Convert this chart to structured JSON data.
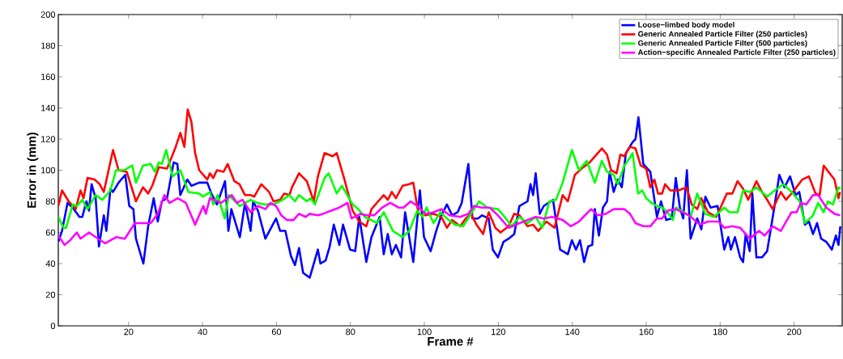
{
  "chart_data": {
    "type": "line",
    "xlabel": "Frame #",
    "ylabel": "Error in (mm)",
    "xlim": [
      1,
      213
    ],
    "ylim": [
      0,
      200
    ],
    "xticks": [
      20,
      40,
      60,
      80,
      100,
      120,
      140,
      160,
      180,
      200
    ],
    "yticks": [
      0,
      20,
      40,
      60,
      80,
      100,
      120,
      140,
      160,
      180,
      200
    ],
    "legend": "top right",
    "marker": "none",
    "line_style": "solid",
    "series": [
      {
        "name": "Loose−limbed body model",
        "color": "#0000ff",
        "x": [
          1,
          2,
          3.5,
          4.9,
          6.7,
          7.5,
          8.6,
          9.3,
          10,
          11.1,
          12,
          13.3,
          14,
          15.1,
          15.8,
          17.3,
          19.1,
          20.2,
          21.3,
          22,
          24,
          25.3,
          26.8,
          27.9,
          29,
          30.4,
          32.2,
          33.2,
          34,
          35.9,
          37,
          39.1,
          41.3,
          42.4,
          43.9,
          46.1,
          47,
          47.8,
          50.1,
          51.5,
          53,
          53.7,
          55,
          57,
          58.1,
          59.9,
          61,
          62.4,
          63.9,
          65,
          66.1,
          67.2,
          69,
          71.2,
          71.9,
          73.3,
          74.4,
          75.5,
          77,
          78,
          79.9,
          81.3,
          82.4,
          84.3,
          85.7,
          87.9,
          89,
          90.1,
          91.2,
          92.3,
          93.7,
          94.8,
          97,
          98.8,
          99.9,
          101.7,
          103.2,
          104.6,
          106.1,
          107.5,
          109,
          110.1,
          111.9,
          113,
          114.5,
          115.6,
          117.4,
          118.5,
          119.9,
          121.4,
          122.8,
          124.3,
          125.7,
          127.9,
          128.7,
          129.4,
          130.1,
          131.2,
          132.3,
          134.8,
          136.7,
          138.8,
          139.9,
          141,
          142.1,
          143.2,
          144.3,
          145.4,
          146.1,
          147.2,
          148.3,
          149.4,
          150.1,
          151.2,
          152.3,
          153.4,
          154.5,
          156.3,
          157.1,
          157.9,
          159.2,
          161.1,
          162.9,
          164,
          165.4,
          166.9,
          168,
          169.1,
          170,
          171,
          172,
          173.8,
          174.9,
          176,
          177.4,
          179.3,
          181.1,
          182.2,
          182.9,
          184,
          185.4,
          186.2,
          186.9,
          188,
          188.7,
          189.8,
          191.3,
          192.7,
          194.5,
          196,
          197.4,
          198.9,
          200.4,
          201.4,
          202.9,
          204,
          205.1,
          206.2,
          207.3,
          208.7,
          210.2,
          211.3,
          212,
          212.5
        ],
        "values": [
          54,
          61,
          79,
          76,
          70,
          70,
          80,
          74,
          91,
          82,
          51,
          71,
          61,
          88,
          86,
          92,
          97,
          77,
          75,
          56,
          40,
          64,
          82,
          67,
          80,
          82,
          105,
          104,
          84,
          94,
          90,
          92,
          92,
          85,
          78,
          93,
          61,
          75,
          57,
          79,
          61,
          80,
          74,
          56,
          61,
          69,
          61,
          61,
          45,
          39,
          50,
          34,
          31,
          49,
          40,
          42,
          51,
          65,
          52,
          65,
          49,
          48,
          70,
          41,
          57,
          70,
          46,
          59,
          46,
          52,
          44,
          73,
          41,
          87,
          57,
          48,
          61,
          71,
          78,
          71,
          73,
          79,
          104,
          69,
          69,
          71,
          69,
          49,
          44,
          54,
          56,
          59,
          77,
          80,
          91,
          84,
          98,
          72,
          77,
          81,
          49,
          46,
          55,
          49,
          55,
          41,
          51,
          52,
          75,
          58,
          76,
          80,
          99,
          86,
          94,
          89,
          111,
          118,
          120,
          134,
          104,
          99,
          70,
          80,
          68,
          69,
          95,
          76,
          69,
          100,
          56,
          69,
          62,
          83,
          76,
          77,
          49,
          57,
          49,
          57,
          44,
          41,
          59,
          48,
          85,
          44,
          44,
          48,
          74,
          97,
          89,
          96,
          84,
          86,
          65,
          67,
          59,
          66,
          56,
          54,
          49,
          58,
          52,
          64
        ]
      },
      {
        "name": "Generic Annealed Particle Filter (250 particles)",
        "color": "#ff0000",
        "x": [
          1,
          2,
          3.8,
          5.7,
          7,
          7.8,
          8.9,
          10.8,
          12.2,
          13.3,
          15.8,
          17.3,
          19.5,
          22,
          23.9,
          25.3,
          26.4,
          28.2,
          30.4,
          32.6,
          34,
          35.1,
          36,
          37,
          38,
          39.1,
          41.3,
          42,
          42.9,
          43.9,
          45.7,
          46.8,
          48.6,
          50,
          51.5,
          53,
          54,
          55.9,
          58,
          59.2,
          61,
          62.1,
          63.5,
          64.2,
          66.1,
          68.2,
          70.1,
          71.2,
          73,
          75.2,
          76.3,
          78.4,
          80.6,
          82.4,
          84.3,
          85.7,
          87.5,
          89,
          90.1,
          91.2,
          92.3,
          94.1,
          95.9,
          97,
          98.4,
          100.3,
          102.5,
          104.6,
          106.1,
          107.5,
          109.7,
          111.2,
          112.6,
          114.1,
          115.9,
          117.4,
          119.2,
          120.6,
          122.8,
          124.3,
          125.7,
          127.9,
          129.4,
          130.8,
          133,
          135.2,
          137.4,
          138.8,
          140.7,
          142.5,
          144.7,
          148,
          149.4,
          150.5,
          152,
          153,
          154.1,
          155.6,
          157.1,
          158.5,
          160,
          161.1,
          162.2,
          163.2,
          164.3,
          165.1,
          166.5,
          168.7,
          170.9,
          172.3,
          173.8,
          174.9,
          176.7,
          178.9,
          180.3,
          181.8,
          183.3,
          184.7,
          186.2,
          187.6,
          189.8,
          191.3,
          192.7,
          194.2,
          196.4,
          197.8,
          200,
          202.2,
          204,
          205.8,
          206.9,
          208,
          210.9,
          212,
          212.4
        ],
        "values": [
          77,
          87,
          80,
          75,
          87,
          82,
          95,
          94,
          91,
          86,
          113,
          100,
          99,
          80,
          89,
          85,
          90,
          102,
          101,
          114,
          124,
          115,
          139,
          131,
          111,
          100,
          94,
          98,
          95,
          100,
          99,
          104,
          93,
          91,
          84,
          84,
          83,
          91,
          86,
          80,
          81,
          85,
          84,
          89,
          98,
          93,
          80,
          96,
          111,
          109,
          111,
          94,
          74,
          67,
          64,
          75,
          80,
          84,
          81,
          86,
          82,
          90,
          91,
          92,
          72,
          71,
          72,
          70,
          63,
          68,
          64,
          69,
          72,
          65,
          59,
          73,
          63,
          60,
          64,
          72,
          71,
          64,
          65,
          61,
          67,
          63,
          84,
          80,
          97,
          101,
          105,
          114,
          110,
          100,
          98,
          110,
          109,
          115,
          114,
          103,
          101,
          89,
          94,
          85,
          85,
          91,
          87,
          87,
          89,
          78,
          75,
          82,
          73,
          70,
          77,
          85,
          85,
          93,
          88,
          81,
          93,
          86,
          81,
          75,
          86,
          81,
          87,
          94,
          96,
          85,
          84,
          103,
          94,
          82,
          86
        ]
      },
      {
        "name": "Generic Annealed Particle Filter (500 particles)",
        "color": "#00ff00",
        "x": [
          1,
          2.4,
          3.1,
          4.9,
          6,
          7.5,
          8.9,
          11.1,
          12.9,
          15.1,
          16.6,
          18.8,
          21,
          22,
          23.9,
          26,
          27.1,
          28.2,
          29,
          30.2,
          31.9,
          34,
          36.2,
          39.1,
          40.2,
          42,
          42.9,
          44.1,
          46,
          47.1,
          50.1,
          53,
          54.8,
          56.6,
          59.2,
          61.7,
          63.5,
          65,
          66.1,
          68.2,
          69.3,
          70.4,
          73,
          74.1,
          76.3,
          77.7,
          80.6,
          82.1,
          83.9,
          87.2,
          89,
          91.5,
          94.1,
          95.9,
          98.1,
          99.5,
          100.6,
          102.5,
          104.3,
          106.1,
          108.3,
          110.5,
          112.6,
          114.8,
          117,
          119.9,
          121.7,
          123.6,
          125.7,
          127.9,
          130.1,
          131.9,
          133.8,
          135.6,
          137.4,
          139.9,
          141.8,
          143.9,
          146.1,
          148,
          149.4,
          151.2,
          152.3,
          154.1,
          155.6,
          156.3,
          157.8,
          158.9,
          160,
          161.4,
          162.9,
          164.3,
          165.8,
          167.2,
          168,
          170.2,
          172,
          173.8,
          176,
          178.2,
          179.3,
          181.1,
          182.5,
          184.7,
          186.2,
          188,
          189.8,
          192.7,
          194.2,
          197.1,
          199.3,
          201.5,
          202.9,
          205.1,
          206.5,
          208,
          209.1,
          210.5,
          212,
          212.5
        ],
        "values": [
          70,
          63,
          63,
          78,
          77,
          81,
          75,
          84,
          81,
          87,
          100,
          100,
          103,
          92,
          103,
          104,
          99,
          105,
          104,
          113,
          96,
          100,
          86,
          85,
          83,
          86,
          78,
          84,
          69,
          84,
          77,
          81,
          79,
          78,
          78,
          81,
          84,
          80,
          84,
          80,
          82,
          78,
          95,
          98,
          85,
          90,
          78,
          75,
          70,
          66,
          73,
          61,
          57,
          61,
          74,
          70,
          76,
          66,
          73,
          69,
          65,
          64,
          72,
          80,
          76,
          75,
          70,
          64,
          70,
          66,
          70,
          63,
          80,
          81,
          92,
          113,
          100,
          106,
          92,
          106,
          99,
          97,
          91,
          103,
          108,
          111,
          85,
          87,
          82,
          79,
          77,
          76,
          73,
          68,
          76,
          73,
          70,
          85,
          72,
          70,
          72,
          76,
          73,
          73,
          87,
          86,
          89,
          83,
          86,
          91,
          86,
          80,
          66,
          71,
          79,
          73,
          80,
          78,
          89,
          88
        ]
      },
      {
        "name": "Action−specific Annealed Particle Filter (250 particles)",
        "color": "#ff00ff",
        "x": [
          1,
          2.7,
          4.2,
          6,
          7,
          9.3,
          11.1,
          13.7,
          16.6,
          19,
          21.7,
          26,
          27.9,
          29.7,
          31.1,
          33.3,
          35.5,
          38,
          40.2,
          40.9,
          42,
          45,
          47.9,
          49.3,
          50.8,
          53,
          55.1,
          57,
          58.4,
          59.9,
          61.3,
          62.8,
          64.6,
          66.1,
          67.9,
          69,
          71.2,
          72.6,
          74.8,
          77,
          79.2,
          80.3,
          82.8,
          84.3,
          86.4,
          88.6,
          90.8,
          93,
          94.4,
          96.3,
          98.1,
          100.3,
          102.5,
          104.6,
          106.8,
          109.7,
          111.9,
          113.4,
          115.5,
          117.7,
          119.9,
          122.8,
          125.7,
          127.9,
          130.1,
          132.3,
          134.5,
          137.4,
          139.6,
          141.8,
          143,
          145.1,
          146.9,
          149.1,
          151.2,
          154.1,
          155.6,
          157.1,
          159.2,
          161.1,
          162.9,
          164.3,
          165.8,
          168,
          171.6,
          174.5,
          176.7,
          179.6,
          181.1,
          183.3,
          185.4,
          188,
          190.5,
          192,
          194.2,
          196.4,
          199.3,
          200.7,
          201.8,
          203.3,
          205.1,
          206.5,
          208.7,
          210.9,
          212.4
        ],
        "values": [
          58,
          52,
          55,
          60,
          56,
          60,
          57,
          53,
          57,
          56,
          66,
          66,
          72,
          84,
          79,
          82,
          79,
          65,
          77,
          72,
          82,
          79,
          84,
          79,
          81,
          73,
          77,
          75,
          79,
          77,
          71,
          68,
          68,
          72,
          70,
          72,
          71,
          72,
          74,
          76,
          79,
          69,
          72,
          71,
          71,
          76,
          79,
          76,
          76,
          80,
          77,
          72,
          73,
          75,
          71,
          70,
          72,
          77,
          76,
          76,
          71,
          63,
          66,
          68,
          70,
          69,
          70,
          68,
          64,
          67,
          70,
          75,
          71,
          72,
          75,
          75,
          72,
          66,
          64,
          64,
          69,
          69,
          74,
          75,
          71,
          65,
          67,
          67,
          63,
          64,
          63,
          56,
          61,
          58,
          64,
          61,
          73,
          73,
          79,
          78,
          84,
          84,
          76,
          72,
          71
        ]
      }
    ]
  }
}
